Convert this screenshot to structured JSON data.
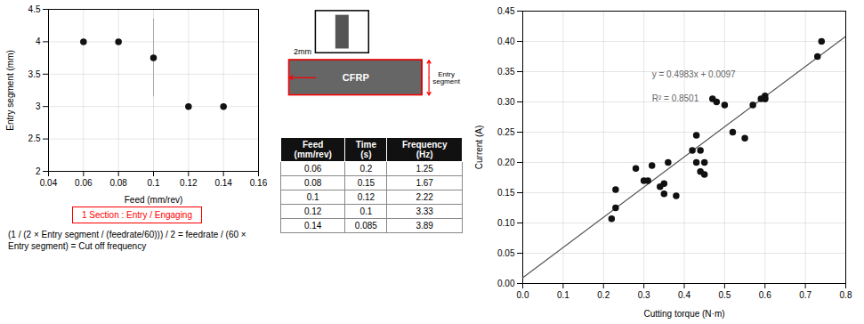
{
  "chart_data": [
    {
      "type": "scatter",
      "x": [
        0.06,
        0.08,
        0.1,
        0.12,
        0.14
      ],
      "values": [
        4.0,
        4.0,
        3.75,
        3.0,
        3.0
      ],
      "yerr": [
        0,
        0,
        0.6,
        0,
        0
      ],
      "xlabel": "Feed (mm/rev)",
      "ylabel": "Entry segment (mm)",
      "xlim": [
        0.04,
        0.16
      ],
      "ylim": [
        2.0,
        4.5
      ],
      "xticks": [
        0.04,
        0.06,
        0.08,
        0.1,
        0.12,
        0.14,
        0.16
      ],
      "yticks": [
        2,
        2.5,
        3,
        3.5,
        4,
        4.5
      ],
      "grid": true,
      "color": "#111111",
      "annotations": [
        "1 Section : Entry / Engaging",
        "(1 / (2 × Entry segment / (feedrate/60))) / 2 = feedrate / (60 × Entry segment) = Cut off frequency"
      ]
    },
    {
      "type": "table",
      "columns": [
        "Feed\n(mm/rev)",
        "Time\n(s)",
        "Frequency\n(Hz)"
      ],
      "rows": [
        [
          0.06,
          0.2,
          1.25
        ],
        [
          0.08,
          0.15,
          1.67
        ],
        [
          0.1,
          0.12,
          2.22
        ],
        [
          0.12,
          0.1,
          3.33
        ],
        [
          0.14,
          0.085,
          3.89
        ]
      ],
      "annotations": [
        "CFRP",
        "2mm",
        "Entry\nsegment"
      ]
    },
    {
      "type": "scatter",
      "x": [
        0.22,
        0.23,
        0.23,
        0.28,
        0.3,
        0.31,
        0.32,
        0.34,
        0.35,
        0.35,
        0.36,
        0.38,
        0.42,
        0.43,
        0.43,
        0.44,
        0.44,
        0.45,
        0.45,
        0.47,
        0.48,
        0.5,
        0.52,
        0.55,
        0.57,
        0.59,
        0.6,
        0.6,
        0.6,
        0.73,
        0.74
      ],
      "values": [
        0.107,
        0.125,
        0.155,
        0.19,
        0.17,
        0.17,
        0.195,
        0.16,
        0.148,
        0.165,
        0.2,
        0.145,
        0.22,
        0.245,
        0.2,
        0.22,
        0.185,
        0.18,
        0.2,
        0.305,
        0.3,
        0.295,
        0.25,
        0.24,
        0.295,
        0.305,
        0.305,
        0.305,
        0.31,
        0.375,
        0.4
      ],
      "color": "#111111",
      "fit_line": {
        "x": [
          0,
          0.8
        ],
        "values": [
          0.0097,
          0.40834
        ],
        "color": "#555555"
      },
      "xlabel": "Cutting torque (N·m)",
      "ylabel": "Current (A)",
      "xlim": [
        0,
        0.8
      ],
      "ylim": [
        0,
        0.45
      ],
      "xticks": [
        {
          "value": 0,
          "label": "0.0"
        },
        0.1,
        0.2,
        0.3,
        0.4,
        0.5,
        0.6,
        0.7,
        0.8
      ],
      "yticks": [
        {
          "value": 0,
          "label": "0.00"
        },
        0.05,
        {
          "value": 0.1,
          "label": "0.10"
        },
        0.15,
        {
          "value": 0.2,
          "label": "0.20"
        },
        0.25,
        {
          "value": 0.3,
          "label": "0.30"
        },
        0.35,
        {
          "value": 0.4,
          "label": "0.40"
        },
        0.45
      ],
      "grid": true,
      "annotations": [
        "y = 0.4983x + 0.0097",
        "R² = 0.8501"
      ]
    }
  ]
}
